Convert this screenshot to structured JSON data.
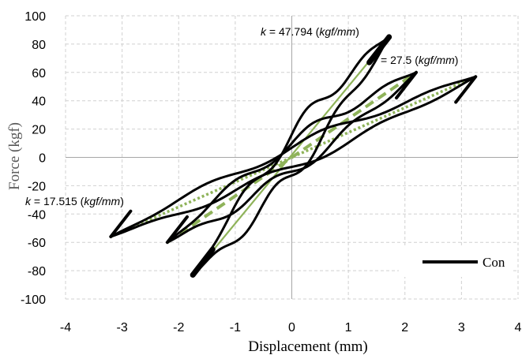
{
  "chart_data": {
    "type": "line",
    "xlabel": "Displacement (mm)",
    "ylabel": "Force (kgf)",
    "xlim": [
      -4,
      4
    ],
    "ylim": [
      -100,
      100
    ],
    "x_ticks": [
      -4,
      -3,
      -2,
      -1,
      0,
      1,
      2,
      3,
      4
    ],
    "y_ticks": [
      100,
      80,
      60,
      40,
      20,
      0,
      -20,
      -40,
      -60,
      -80,
      -100
    ],
    "grid": "dashed",
    "legend": {
      "entries": [
        "Con"
      ],
      "placement": "bottom-right"
    },
    "colors": {
      "hysteresis": "#000000",
      "stiffness_lines": "#8fb35a"
    },
    "annotations": [
      {
        "text_k": "k",
        "text_rest": " = 47.794 (",
        "text_unit": "kgf/mm",
        "text_close": ")",
        "x": 1.72,
        "y": 86
      },
      {
        "text_k": "",
        "text_rest": "= 27.5 (",
        "text_unit": "kgf/mm",
        "text_close": ")",
        "x": 2.2,
        "y": 60
      },
      {
        "text_k": "k",
        "text_rest": " = 17.515 (",
        "text_unit": "kgf/mm",
        "text_close": ")",
        "x": -3.2,
        "y": -56
      }
    ],
    "series": [
      {
        "name": "Con",
        "loops": [
          {
            "d_neg": -3.2,
            "f_neg": -56,
            "d_pos": 3.25,
            "f_pos": 57,
            "w": 7
          },
          {
            "d_neg": -2.2,
            "f_neg": -60,
            "d_pos": 2.2,
            "f_pos": 60,
            "w": 10
          },
          {
            "d_neg": -1.75,
            "f_neg": -83,
            "d_pos": 1.72,
            "f_pos": 85,
            "w": 14
          }
        ]
      }
    ],
    "stiffness_lines": [
      {
        "k": 47.794,
        "x": [
          -1.75,
          1.72
        ],
        "y": [
          -83,
          85
        ],
        "style": "solid"
      },
      {
        "k": 27.5,
        "x": [
          -2.2,
          2.2
        ],
        "y": [
          -60,
          60
        ],
        "style": "dashed"
      },
      {
        "k": 17.515,
        "x": [
          -3.2,
          3.25
        ],
        "y": [
          -56,
          57
        ],
        "style": "dotted"
      }
    ]
  }
}
